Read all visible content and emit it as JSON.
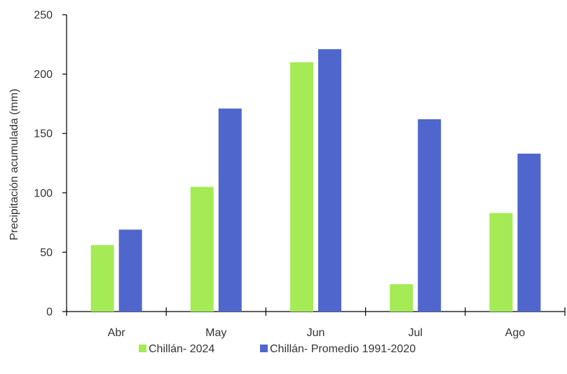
{
  "chart_data": {
    "type": "bar",
    "title": "",
    "xlabel": "",
    "ylabel": "Precipitación acumulada (mm)",
    "categories": [
      "Abr",
      "May",
      "Jun",
      "Jul",
      "Ago"
    ],
    "ylim": [
      0,
      250
    ],
    "yticks": [
      0,
      50,
      100,
      150,
      200,
      250
    ],
    "grid": false,
    "legend_position": "bottom",
    "series": [
      {
        "name": "Chillán- 2024",
        "color": "#a4eb56",
        "values": [
          56,
          105,
          210,
          23,
          83
        ]
      },
      {
        "name": "Chillán- Promedio 1991-2020",
        "color": "#4f67cc",
        "values": [
          69,
          171,
          221,
          162,
          133
        ]
      }
    ]
  }
}
